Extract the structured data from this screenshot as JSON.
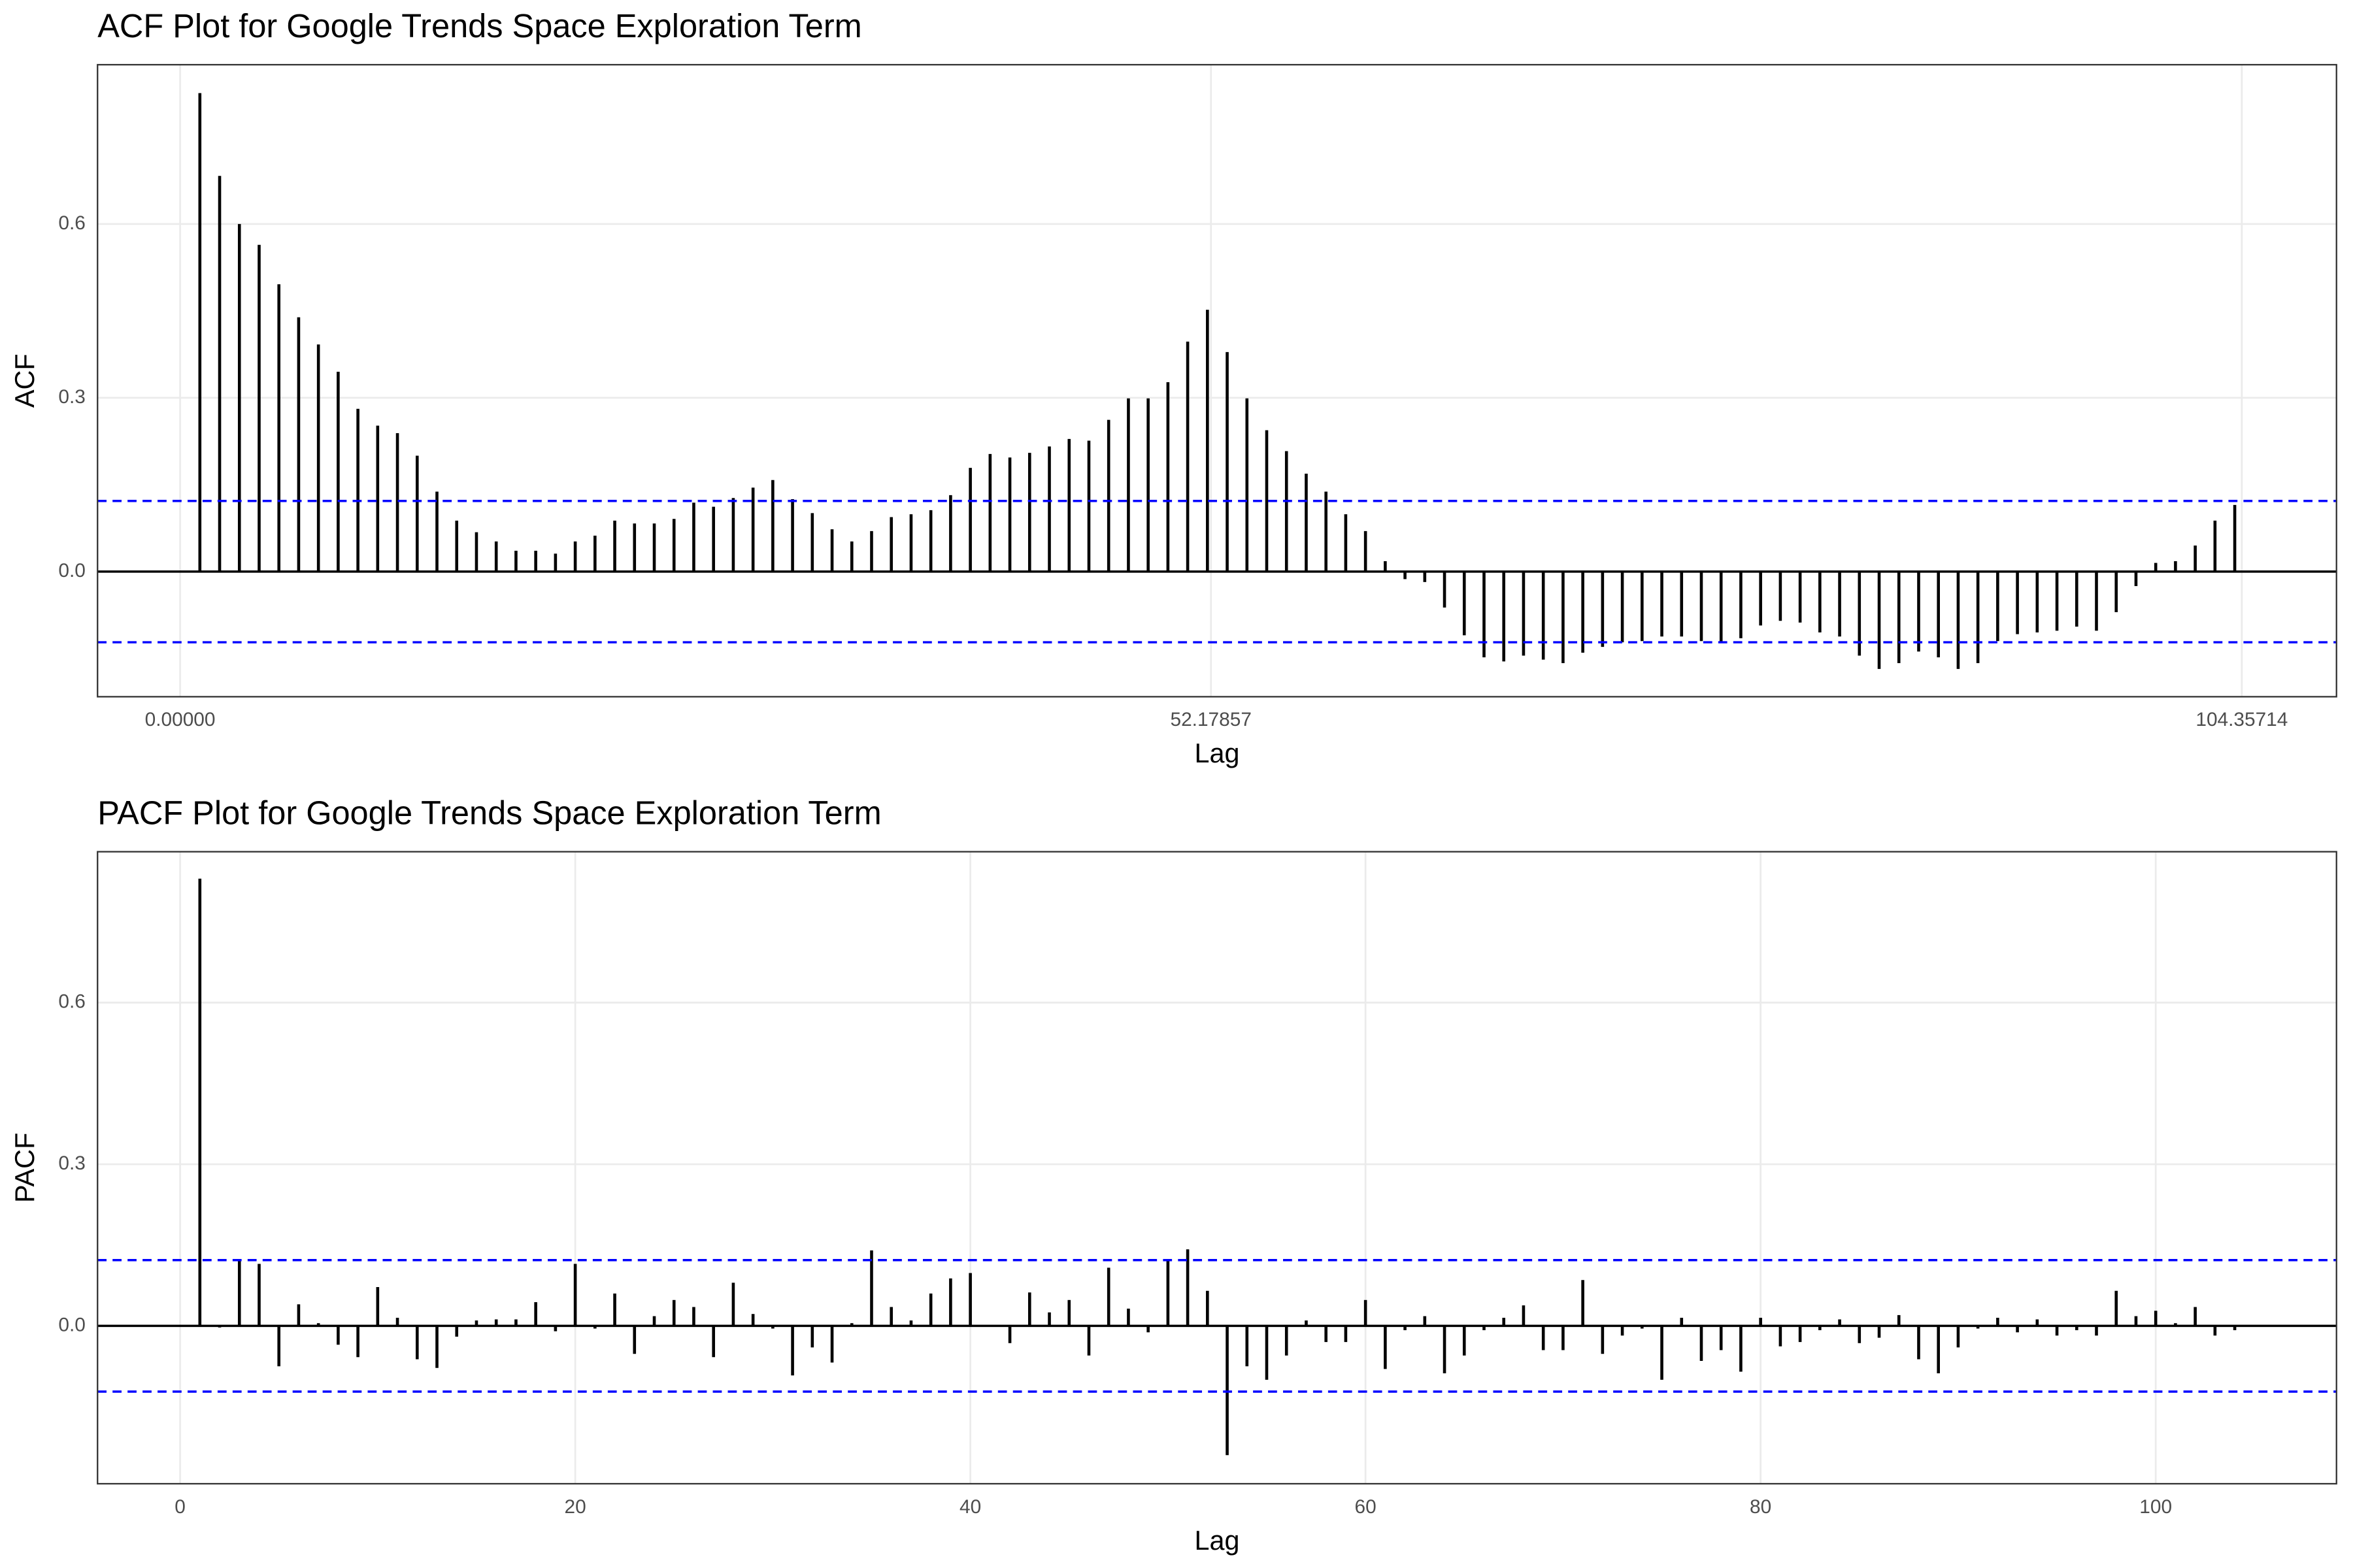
{
  "chart_data": [
    {
      "type": "stem",
      "title": "ACF Plot for Google Trends Space Exploration Term",
      "x_label": "Lag",
      "y_label": "ACF",
      "x": [
        1,
        2,
        3,
        4,
        5,
        6,
        7,
        8,
        9,
        10,
        11,
        12,
        13,
        14,
        15,
        16,
        17,
        18,
        19,
        20,
        21,
        22,
        23,
        24,
        25,
        26,
        27,
        28,
        29,
        30,
        31,
        32,
        33,
        34,
        35,
        36,
        37,
        38,
        39,
        40,
        41,
        42,
        43,
        44,
        45,
        46,
        47,
        48,
        49,
        50,
        51,
        52,
        53,
        54,
        55,
        56,
        57,
        58,
        59,
        60,
        61,
        62,
        63,
        64,
        65,
        66,
        67,
        68,
        69,
        70,
        71,
        72,
        73,
        74,
        75,
        76,
        77,
        78,
        79,
        80,
        81,
        82,
        83,
        84,
        85,
        86,
        87,
        88,
        89,
        90,
        91,
        92,
        93,
        94,
        95,
        96,
        97,
        98,
        99,
        100,
        101,
        102,
        103,
        104
      ],
      "values": [
        0.826,
        0.683,
        0.6,
        0.564,
        0.496,
        0.439,
        0.392,
        0.345,
        0.281,
        0.252,
        0.239,
        0.2,
        0.138,
        0.088,
        0.068,
        0.052,
        0.036,
        0.036,
        0.031,
        0.052,
        0.062,
        0.088,
        0.083,
        0.083,
        0.091,
        0.119,
        0.112,
        0.127,
        0.145,
        0.158,
        0.125,
        0.101,
        0.073,
        0.052,
        0.07,
        0.094,
        0.099,
        0.106,
        0.132,
        0.179,
        0.203,
        0.197,
        0.205,
        0.216,
        0.229,
        0.226,
        0.262,
        0.299,
        0.299,
        0.327,
        0.397,
        0.452,
        0.379,
        0.299,
        0.244,
        0.208,
        0.169,
        0.138,
        0.099,
        0.07,
        0.018,
        -0.013,
        -0.018,
        -0.062,
        -0.11,
        -0.148,
        -0.155,
        -0.145,
        -0.152,
        -0.158,
        -0.14,
        -0.13,
        -0.122,
        -0.12,
        -0.112,
        -0.112,
        -0.12,
        -0.122,
        -0.115,
        -0.093,
        -0.085,
        -0.088,
        -0.105,
        -0.112,
        -0.145,
        -0.168,
        -0.158,
        -0.138,
        -0.148,
        -0.168,
        -0.158,
        -0.12,
        -0.108,
        -0.105,
        -0.102,
        -0.095,
        -0.102,
        -0.07,
        -0.025,
        0.015,
        0.018,
        0.045,
        0.088,
        0.115
      ],
      "color": "#000000",
      "confidence_limits": [
        -0.122,
        0.122
      ],
      "ci_color": "#0000ff",
      "xlim": [
        -4.18,
        109.15
      ],
      "xticks": [
        {
          "value": 0,
          "label": "0.00000"
        },
        {
          "value": 52.17857,
          "label": "52.17857"
        },
        {
          "value": 104.35714,
          "label": "104.35714"
        }
      ],
      "ylim": [
        -0.216,
        0.875
      ],
      "yticks": [
        {
          "value": 0,
          "label": "0.0"
        },
        0.3,
        0.6
      ],
      "grid": true
    },
    {
      "type": "stem",
      "title": "PACF Plot for Google Trends Space Exploration Term",
      "x_label": "Lag",
      "y_label": "PACF",
      "x": [
        1,
        2,
        3,
        4,
        5,
        6,
        7,
        8,
        9,
        10,
        11,
        12,
        13,
        14,
        15,
        16,
        17,
        18,
        19,
        20,
        21,
        22,
        23,
        24,
        25,
        26,
        27,
        28,
        29,
        30,
        31,
        32,
        33,
        34,
        35,
        36,
        37,
        38,
        39,
        40,
        41,
        42,
        43,
        44,
        45,
        46,
        47,
        48,
        49,
        50,
        51,
        52,
        53,
        54,
        55,
        56,
        57,
        58,
        59,
        60,
        61,
        62,
        63,
        64,
        65,
        66,
        67,
        68,
        69,
        70,
        71,
        72,
        73,
        74,
        75,
        76,
        77,
        78,
        79,
        80,
        81,
        82,
        83,
        84,
        85,
        86,
        87,
        88,
        89,
        90,
        91,
        92,
        93,
        94,
        95,
        96,
        97,
        98,
        99,
        100,
        101,
        102,
        103,
        104
      ],
      "values": [
        0.83,
        -0.003,
        0.12,
        0.115,
        -0.075,
        0.04,
        0.005,
        -0.035,
        -0.058,
        0.072,
        0.015,
        -0.062,
        -0.078,
        -0.02,
        0.01,
        0.012,
        0.012,
        0.044,
        -0.01,
        0.115,
        -0.005,
        0.06,
        -0.052,
        0.018,
        0.048,
        0.035,
        -0.058,
        0.08,
        0.022,
        -0.005,
        -0.092,
        -0.04,
        -0.068,
        0.005,
        0.14,
        0.035,
        0.01,
        0.06,
        0.088,
        0.098,
        0.001,
        -0.032,
        0.062,
        0.025,
        0.048,
        -0.055,
        0.108,
        0.032,
        -0.012,
        0.12,
        0.142,
        0.065,
        -0.24,
        -0.075,
        -0.1,
        -0.055,
        0.01,
        -0.03,
        -0.03,
        0.048,
        -0.08,
        -0.008,
        0.018,
        -0.088,
        -0.055,
        -0.008,
        0.015,
        0.038,
        -0.045,
        -0.045,
        0.085,
        -0.052,
        -0.018,
        -0.005,
        -0.1,
        0.015,
        -0.065,
        -0.045,
        -0.085,
        0.015,
        -0.038,
        -0.03,
        -0.008,
        0.012,
        -0.032,
        -0.022,
        0.02,
        -0.062,
        -0.088,
        -0.04,
        -0.005,
        0.015,
        -0.012,
        0.012,
        -0.018,
        -0.008,
        -0.018,
        0.065,
        0.018,
        0.028,
        0.005,
        0.035,
        -0.018,
        -0.008
      ],
      "color": "#000000",
      "confidence_limits": [
        -0.122,
        0.122
      ],
      "ci_color": "#0000ff",
      "xlim": [
        -4.18,
        109.15
      ],
      "xticks": [
        0,
        20,
        40,
        60,
        80,
        100
      ],
      "ylim": [
        -0.293,
        0.88
      ],
      "yticks": [
        {
          "value": 0,
          "label": "0.0"
        },
        0.3,
        0.6
      ],
      "grid": true
    }
  ]
}
